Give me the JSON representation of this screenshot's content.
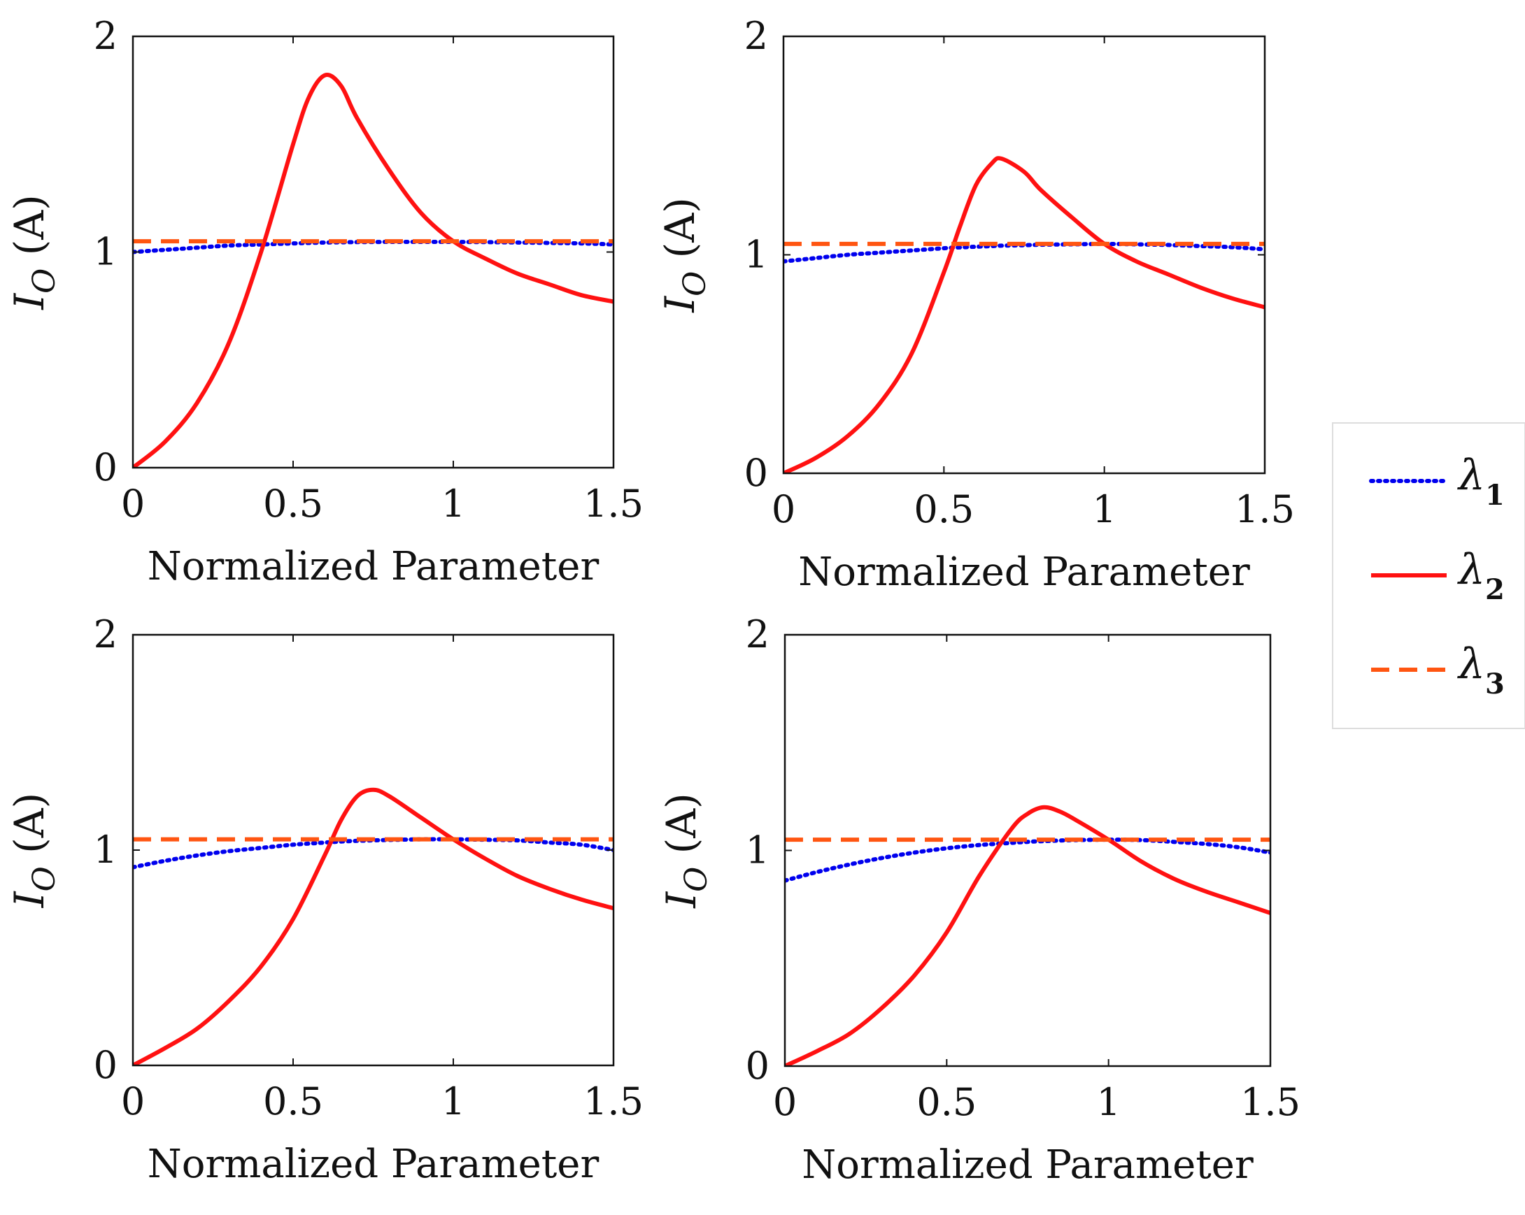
{
  "chart_data": [
    {
      "type": "line",
      "panel": "top-left",
      "xlabel": "Normalized Parameter",
      "ylabel_symbol": "I",
      "ylabel_subscript": "O",
      "ylabel_unit": "(A)",
      "xlim": [
        0,
        1.5
      ],
      "ylim": [
        0,
        2
      ],
      "xticks": [
        0,
        0.5,
        1,
        1.5
      ],
      "xtick_labels": [
        "0",
        "0.5",
        "1",
        "1.5"
      ],
      "yticks": [
        0,
        1,
        2
      ],
      "ytick_labels": [
        "0",
        "1",
        "2"
      ],
      "x": [
        0,
        0.1,
        0.2,
        0.3,
        0.4,
        0.5,
        0.55,
        0.6,
        0.65,
        0.7,
        0.8,
        0.9,
        1.0,
        1.1,
        1.2,
        1.3,
        1.4,
        1.5
      ],
      "series": [
        {
          "name": "λ1",
          "values": [
            1.0,
            1.01,
            1.02,
            1.03,
            1.035,
            1.04,
            1.042,
            1.044,
            1.045,
            1.046,
            1.047,
            1.047,
            1.047,
            1.046,
            1.044,
            1.042,
            1.04,
            1.035
          ]
        },
        {
          "name": "λ2",
          "values": [
            0,
            0.12,
            0.3,
            0.58,
            1.0,
            1.5,
            1.72,
            1.82,
            1.77,
            1.62,
            1.38,
            1.18,
            1.05,
            0.97,
            0.9,
            0.85,
            0.8,
            0.77
          ]
        },
        {
          "name": "λ3",
          "values": [
            1.05,
            1.05,
            1.05,
            1.05,
            1.05,
            1.05,
            1.05,
            1.05,
            1.05,
            1.05,
            1.05,
            1.05,
            1.05,
            1.05,
            1.05,
            1.05,
            1.05,
            1.05
          ]
        }
      ]
    },
    {
      "type": "line",
      "panel": "top-right",
      "xlabel": "Normalized Parameter",
      "ylabel_symbol": "I",
      "ylabel_subscript": "O",
      "ylabel_unit": "(A)",
      "xlim": [
        0,
        1.5
      ],
      "ylim": [
        0,
        2
      ],
      "xticks": [
        0,
        0.5,
        1,
        1.5
      ],
      "xtick_labels": [
        "0",
        "0.5",
        "1",
        "1.5"
      ],
      "yticks": [
        0,
        1,
        2
      ],
      "ytick_labels": [
        "0",
        "1",
        "2"
      ],
      "x": [
        0,
        0.1,
        0.2,
        0.3,
        0.4,
        0.5,
        0.55,
        0.6,
        0.65,
        0.68,
        0.75,
        0.8,
        0.9,
        1.0,
        1.1,
        1.2,
        1.3,
        1.4,
        1.5
      ],
      "series": [
        {
          "name": "λ1",
          "values": [
            0.97,
            0.985,
            1.0,
            1.01,
            1.02,
            1.03,
            1.034,
            1.037,
            1.04,
            1.042,
            1.044,
            1.046,
            1.048,
            1.05,
            1.048,
            1.045,
            1.04,
            1.035,
            1.025
          ]
        },
        {
          "name": "λ2",
          "values": [
            0,
            0.07,
            0.17,
            0.32,
            0.55,
            0.92,
            1.13,
            1.32,
            1.42,
            1.44,
            1.38,
            1.3,
            1.17,
            1.05,
            0.97,
            0.91,
            0.85,
            0.8,
            0.76
          ]
        },
        {
          "name": "λ3",
          "values": [
            1.05,
            1.05,
            1.05,
            1.05,
            1.05,
            1.05,
            1.05,
            1.05,
            1.05,
            1.05,
            1.05,
            1.05,
            1.05,
            1.05,
            1.05,
            1.05,
            1.05,
            1.05,
            1.05
          ]
        }
      ]
    },
    {
      "type": "line",
      "panel": "bottom-left",
      "xlabel": "Normalized Parameter",
      "ylabel_symbol": "I",
      "ylabel_subscript": "O",
      "ylabel_unit": "(A)",
      "xlim": [
        0,
        1.5
      ],
      "ylim": [
        0,
        2
      ],
      "xticks": [
        0,
        0.5,
        1,
        1.5
      ],
      "xtick_labels": [
        "0",
        "0.5",
        "1",
        "1.5"
      ],
      "yticks": [
        0,
        1,
        2
      ],
      "ytick_labels": [
        "0",
        "1",
        "2"
      ],
      "x": [
        0,
        0.1,
        0.2,
        0.3,
        0.4,
        0.5,
        0.6,
        0.65,
        0.7,
        0.75,
        0.8,
        0.9,
        1.0,
        1.1,
        1.2,
        1.3,
        1.4,
        1.5
      ],
      "series": [
        {
          "name": "λ1",
          "values": [
            0.92,
            0.95,
            0.975,
            0.995,
            1.01,
            1.025,
            1.035,
            1.04,
            1.043,
            1.045,
            1.047,
            1.05,
            1.05,
            1.048,
            1.045,
            1.035,
            1.025,
            1.0
          ]
        },
        {
          "name": "λ2",
          "values": [
            0,
            0.08,
            0.17,
            0.3,
            0.46,
            0.68,
            0.98,
            1.14,
            1.25,
            1.28,
            1.25,
            1.15,
            1.05,
            0.96,
            0.88,
            0.82,
            0.77,
            0.73
          ]
        },
        {
          "name": "λ3",
          "values": [
            1.05,
            1.05,
            1.05,
            1.05,
            1.05,
            1.05,
            1.05,
            1.05,
            1.05,
            1.05,
            1.05,
            1.05,
            1.05,
            1.05,
            1.05,
            1.05,
            1.05,
            1.05
          ]
        }
      ]
    },
    {
      "type": "line",
      "panel": "bottom-right",
      "xlabel": "Normalized Parameter",
      "ylabel_symbol": "I",
      "ylabel_subscript": "O",
      "ylabel_unit": "(A)",
      "xlim": [
        0,
        1.5
      ],
      "ylim": [
        0,
        2
      ],
      "xticks": [
        0,
        0.5,
        1,
        1.5
      ],
      "xtick_labels": [
        "0",
        "0.5",
        "1",
        "1.5"
      ],
      "yticks": [
        0,
        1,
        2
      ],
      "ytick_labels": [
        "0",
        "1",
        "2"
      ],
      "x": [
        0,
        0.1,
        0.2,
        0.3,
        0.4,
        0.5,
        0.6,
        0.7,
        0.75,
        0.8,
        0.85,
        0.9,
        1.0,
        1.1,
        1.2,
        1.3,
        1.4,
        1.5
      ],
      "series": [
        {
          "name": "λ1",
          "values": [
            0.86,
            0.9,
            0.935,
            0.965,
            0.99,
            1.01,
            1.025,
            1.035,
            1.04,
            1.043,
            1.046,
            1.048,
            1.05,
            1.048,
            1.04,
            1.03,
            1.015,
            0.99
          ]
        },
        {
          "name": "λ2",
          "values": [
            0,
            0.07,
            0.15,
            0.27,
            0.42,
            0.62,
            0.88,
            1.1,
            1.17,
            1.2,
            1.18,
            1.14,
            1.05,
            0.95,
            0.87,
            0.81,
            0.76,
            0.71
          ]
        },
        {
          "name": "λ3",
          "values": [
            1.05,
            1.05,
            1.05,
            1.05,
            1.05,
            1.05,
            1.05,
            1.05,
            1.05,
            1.05,
            1.05,
            1.05,
            1.05,
            1.05,
            1.05,
            1.05,
            1.05,
            1.05
          ]
        }
      ]
    }
  ],
  "legend": {
    "items": [
      {
        "symbol": "λ",
        "subscript": "1",
        "style": "dotted",
        "color": "#0000ee"
      },
      {
        "symbol": "λ",
        "subscript": "2",
        "style": "solid",
        "color": "#ff1111"
      },
      {
        "symbol": "λ",
        "subscript": "3",
        "style": "dashed",
        "color": "#ff5511"
      }
    ]
  },
  "colors": {
    "lambda1": "#0000ee",
    "lambda2": "#ff1111",
    "lambda3": "#ff5511",
    "axes": "#111111",
    "legend_border": "#dddddd"
  }
}
